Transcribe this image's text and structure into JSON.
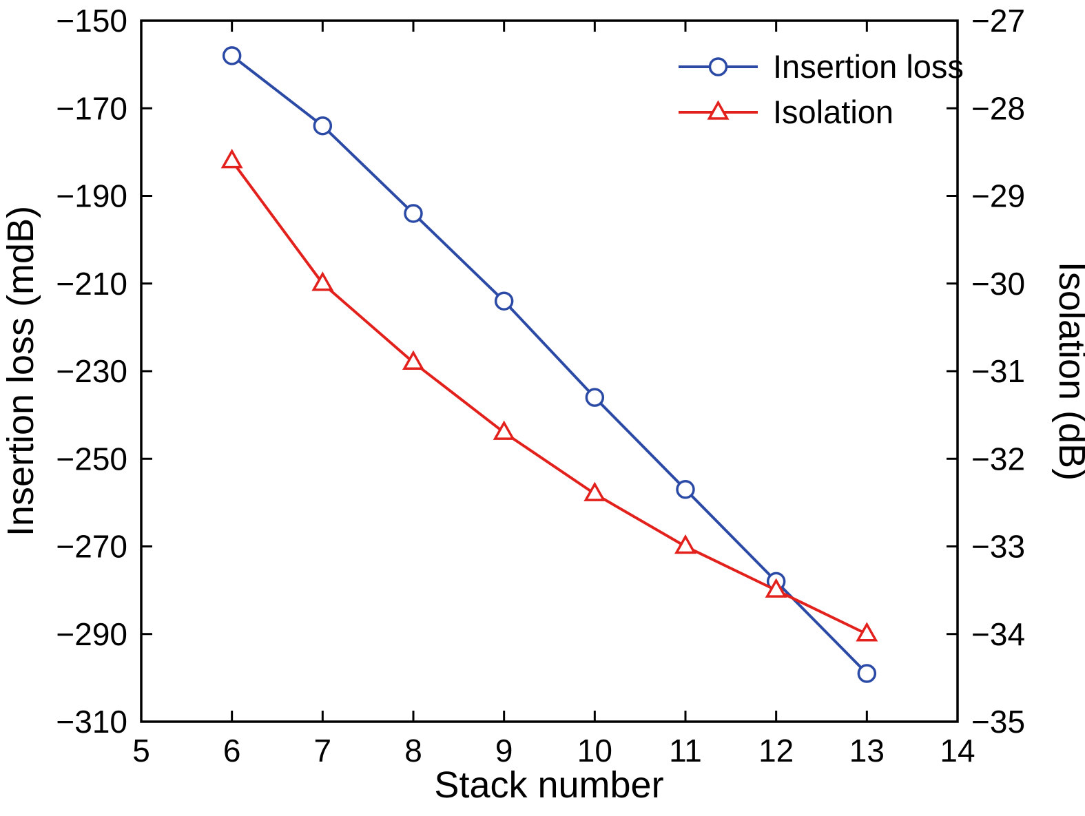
{
  "chart_data": {
    "type": "line",
    "x": [
      6,
      7,
      8,
      9,
      10,
      11,
      12,
      13
    ],
    "series": [
      {
        "name": "Insertion loss",
        "axis": "left",
        "color": "#2b4aa5",
        "marker": "circle",
        "values": [
          -158,
          -174,
          -194,
          -214,
          -236,
          -257,
          -278,
          -299
        ]
      },
      {
        "name": "Isolation",
        "axis": "right",
        "color": "#e3211c",
        "marker": "triangle",
        "values": [
          -28.6,
          -30.0,
          -30.9,
          -31.7,
          -32.4,
          -33.0,
          -33.5,
          -34.0
        ]
      }
    ],
    "title": "",
    "xlabel": "Stack number",
    "ylabel_left": "Insertion loss (mdB)",
    "ylabel_right": "Isolation (dB)",
    "xlim": [
      5,
      14
    ],
    "xticks": [
      5,
      6,
      7,
      8,
      9,
      10,
      11,
      12,
      13,
      14
    ],
    "ylim_left": [
      -310,
      -150
    ],
    "yticks_left": [
      -310,
      -290,
      -270,
      -250,
      -230,
      -210,
      -190,
      -170,
      -150
    ],
    "ylim_right": [
      -35,
      -27
    ],
    "yticks_right": [
      -35,
      -34,
      -33,
      -32,
      -31,
      -30,
      -29,
      -28,
      -27
    ],
    "legend": [
      "Insertion loss",
      "Isolation"
    ],
    "legend_position": "top-right",
    "grid": false,
    "background": "#ffffff",
    "frame_color": "#000000"
  }
}
